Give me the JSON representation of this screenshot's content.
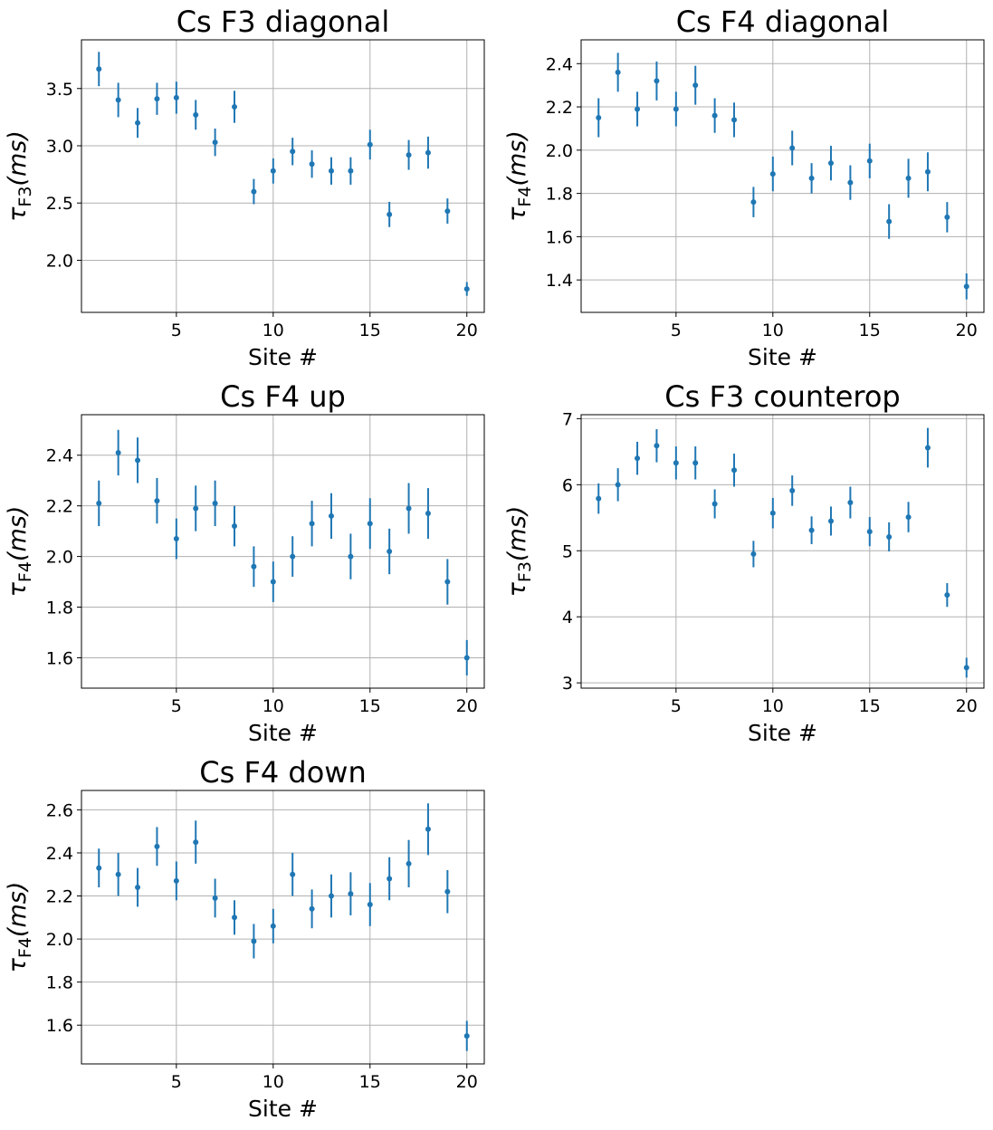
{
  "colors": {
    "marker": "#1f77b4",
    "grid": "#b0b0b0",
    "axis": "#000000"
  },
  "chart_data": [
    {
      "type": "scatter",
      "title": "Cs F3 diagonal",
      "xlabel": "Site #",
      "ylabel": {
        "base": "τ",
        "sub": "F3",
        "rest": "(ms)"
      },
      "grid": true,
      "xlim": [
        0.1,
        20.9
      ],
      "ylim": [
        1.545,
        3.925
      ],
      "xticks": [
        5,
        10,
        15,
        20
      ],
      "xticklabels": [
        "5",
        "10",
        "15",
        "20"
      ],
      "yticks": [
        2.0,
        2.5,
        3.0,
        3.5
      ],
      "yticklabels": [
        "2.0",
        "2.5",
        "3.0",
        "3.5"
      ],
      "x": [
        1,
        2,
        3,
        4,
        5,
        6,
        7,
        8,
        9,
        10,
        11,
        12,
        13,
        14,
        15,
        16,
        17,
        18,
        19,
        20
      ],
      "y": [
        3.67,
        3.4,
        3.2,
        3.41,
        3.42,
        3.27,
        3.03,
        3.34,
        2.6,
        2.78,
        2.95,
        2.84,
        2.78,
        2.78,
        3.01,
        2.4,
        2.92,
        2.94,
        2.43,
        1.75
      ],
      "err": [
        0.15,
        0.15,
        0.13,
        0.14,
        0.14,
        0.13,
        0.12,
        0.14,
        0.11,
        0.11,
        0.12,
        0.12,
        0.12,
        0.12,
        0.13,
        0.11,
        0.13,
        0.14,
        0.11,
        0.06
      ]
    },
    {
      "type": "scatter",
      "title": "Cs F4 diagonal",
      "xlabel": "Site #",
      "ylabel": {
        "base": "τ",
        "sub": "F4",
        "rest": "(ms)"
      },
      "grid": true,
      "xlim": [
        0.1,
        20.9
      ],
      "ylim": [
        1.25,
        2.51
      ],
      "xticks": [
        5,
        10,
        15,
        20
      ],
      "xticklabels": [
        "5",
        "10",
        "15",
        "20"
      ],
      "yticks": [
        1.4,
        1.6,
        1.8,
        2.0,
        2.2,
        2.4
      ],
      "yticklabels": [
        "1.4",
        "1.6",
        "1.8",
        "2.0",
        "2.2",
        "2.4"
      ],
      "x": [
        1,
        2,
        3,
        4,
        5,
        6,
        7,
        8,
        9,
        10,
        11,
        12,
        13,
        14,
        15,
        16,
        17,
        18,
        19,
        20
      ],
      "y": [
        2.15,
        2.36,
        2.19,
        2.32,
        2.19,
        2.3,
        2.16,
        2.14,
        1.76,
        1.89,
        2.01,
        1.87,
        1.94,
        1.85,
        1.95,
        1.67,
        1.87,
        1.9,
        1.69,
        1.37
      ],
      "err": [
        0.09,
        0.09,
        0.08,
        0.09,
        0.08,
        0.09,
        0.08,
        0.08,
        0.07,
        0.08,
        0.08,
        0.07,
        0.08,
        0.08,
        0.08,
        0.08,
        0.09,
        0.09,
        0.07,
        0.06
      ]
    },
    {
      "type": "scatter",
      "title": "Cs F4 up",
      "xlabel": "Site #",
      "ylabel": {
        "base": "τ",
        "sub": "F4",
        "rest": "(ms)"
      },
      "grid": true,
      "xlim": [
        0.1,
        20.9
      ],
      "ylim": [
        1.48,
        2.56
      ],
      "xticks": [
        5,
        10,
        15,
        20
      ],
      "xticklabels": [
        "5",
        "10",
        "15",
        "20"
      ],
      "yticks": [
        1.6,
        1.8,
        2.0,
        2.2,
        2.4
      ],
      "yticklabels": [
        "1.6",
        "1.8",
        "2.0",
        "2.2",
        "2.4"
      ],
      "x": [
        1,
        2,
        3,
        4,
        5,
        6,
        7,
        8,
        9,
        10,
        11,
        12,
        13,
        14,
        15,
        16,
        17,
        18,
        19,
        20
      ],
      "y": [
        2.21,
        2.41,
        2.38,
        2.22,
        2.07,
        2.19,
        2.21,
        2.12,
        1.96,
        1.9,
        2.0,
        2.13,
        2.16,
        2.0,
        2.13,
        2.02,
        2.19,
        2.17,
        1.9,
        1.6
      ],
      "err": [
        0.09,
        0.09,
        0.09,
        0.09,
        0.08,
        0.09,
        0.09,
        0.08,
        0.08,
        0.08,
        0.08,
        0.09,
        0.09,
        0.09,
        0.1,
        0.09,
        0.1,
        0.1,
        0.09,
        0.07
      ]
    },
    {
      "type": "scatter",
      "title": "Cs F3 counterop",
      "xlabel": "Site #",
      "ylabel": {
        "base": "τ",
        "sub": "F3",
        "rest": "(ms)"
      },
      "grid": true,
      "xlim": [
        0.1,
        20.9
      ],
      "ylim": [
        2.92,
        7.06
      ],
      "xticks": [
        5,
        10,
        15,
        20
      ],
      "xticklabels": [
        "5",
        "10",
        "15",
        "20"
      ],
      "yticks": [
        3,
        4,
        5,
        6,
        7
      ],
      "yticklabels": [
        "3",
        "4",
        "5",
        "6",
        "7"
      ],
      "x": [
        1,
        2,
        3,
        4,
        5,
        6,
        7,
        8,
        9,
        10,
        11,
        12,
        13,
        14,
        15,
        16,
        17,
        18,
        19,
        20
      ],
      "y": [
        5.79,
        6.0,
        6.4,
        6.59,
        6.33,
        6.33,
        5.71,
        6.22,
        4.95,
        5.57,
        5.91,
        5.31,
        5.45,
        5.73,
        5.29,
        5.21,
        5.51,
        6.56,
        4.33,
        3.23
      ],
      "err": [
        0.23,
        0.25,
        0.25,
        0.25,
        0.25,
        0.25,
        0.22,
        0.25,
        0.2,
        0.23,
        0.23,
        0.21,
        0.22,
        0.24,
        0.22,
        0.22,
        0.23,
        0.3,
        0.18,
        0.15
      ]
    },
    {
      "type": "scatter",
      "title": "Cs F4 down",
      "xlabel": "Site #",
      "ylabel": {
        "base": "τ",
        "sub": "F4",
        "rest": "(ms)"
      },
      "grid": true,
      "xlim": [
        0.1,
        20.9
      ],
      "ylim": [
        1.42,
        2.69
      ],
      "xticks": [
        5,
        10,
        15,
        20
      ],
      "xticklabels": [
        "5",
        "10",
        "15",
        "20"
      ],
      "yticks": [
        1.6,
        1.8,
        2.0,
        2.2,
        2.4,
        2.6
      ],
      "yticklabels": [
        "1.6",
        "1.8",
        "2.0",
        "2.2",
        "2.4",
        "2.6"
      ],
      "x": [
        1,
        2,
        3,
        4,
        5,
        6,
        7,
        8,
        9,
        10,
        11,
        12,
        13,
        14,
        15,
        16,
        17,
        18,
        19,
        20
      ],
      "y": [
        2.33,
        2.3,
        2.24,
        2.43,
        2.27,
        2.45,
        2.19,
        2.1,
        1.99,
        2.06,
        2.3,
        2.14,
        2.2,
        2.21,
        2.16,
        2.28,
        2.35,
        2.51,
        2.22,
        1.55
      ],
      "err": [
        0.09,
        0.1,
        0.09,
        0.09,
        0.09,
        0.1,
        0.09,
        0.08,
        0.08,
        0.08,
        0.1,
        0.09,
        0.1,
        0.1,
        0.1,
        0.1,
        0.11,
        0.12,
        0.1,
        0.07
      ]
    }
  ]
}
